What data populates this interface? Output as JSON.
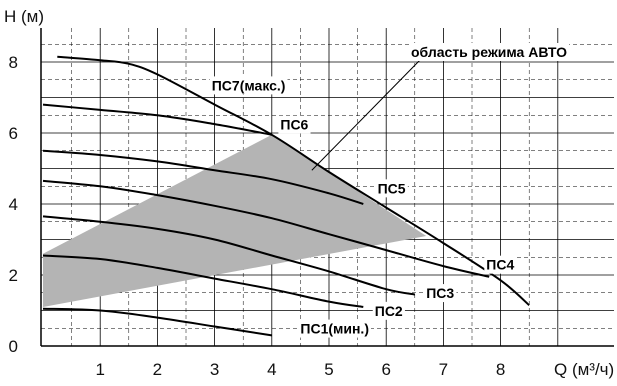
{
  "chart_data": {
    "type": "line",
    "title": "",
    "xlabel": "Q (м³/ч)",
    "ylabel": "H (м)",
    "xlim": [
      0,
      9
    ],
    "ylim": [
      0,
      9
    ],
    "x_ticks": [
      "1",
      "2",
      "3",
      "4",
      "5",
      "6",
      "7",
      "8"
    ],
    "y_ticks": [
      "0",
      "2",
      "4",
      "6",
      "8"
    ],
    "grid": "on (solid major, dashed minor)",
    "colors": {
      "curve": "#000000",
      "grid": "#000000",
      "auto_region": "#b4b4b4"
    },
    "auto_region": {
      "label": "область режима АВТО",
      "polygon": [
        [
          0.0,
          2.6
        ],
        [
          4.0,
          5.95
        ],
        [
          6.7,
          3.1
        ],
        [
          0.0,
          1.1
        ]
      ]
    },
    "series": [
      {
        "name": "ПС1(мин.)",
        "x": [
          0,
          1,
          2,
          3,
          4
        ],
        "y": [
          1.05,
          1.0,
          0.8,
          0.55,
          0.3
        ]
      },
      {
        "name": "ПС2",
        "x": [
          0,
          1,
          2,
          3,
          4,
          5,
          5.6
        ],
        "y": [
          2.55,
          2.45,
          2.2,
          1.9,
          1.6,
          1.25,
          1.1
        ]
      },
      {
        "name": "ПС3",
        "x": [
          0,
          1,
          2,
          3,
          4,
          5,
          6,
          6.5
        ],
        "y": [
          3.65,
          3.5,
          3.3,
          3.0,
          2.55,
          2.1,
          1.6,
          1.45
        ]
      },
      {
        "name": "ПС4",
        "x": [
          0,
          1,
          2,
          3,
          4,
          5,
          6,
          7,
          7.8
        ],
        "y": [
          4.65,
          4.5,
          4.25,
          3.95,
          3.6,
          3.15,
          2.7,
          2.25,
          1.95
        ]
      },
      {
        "name": "ПС5",
        "x": [
          0,
          1,
          2,
          3,
          4,
          5,
          5.6
        ],
        "y": [
          5.5,
          5.38,
          5.2,
          4.95,
          4.7,
          4.3,
          4.0
        ]
      },
      {
        "name": "ПС6",
        "x": [
          0,
          1,
          2,
          3,
          4
        ],
        "y": [
          6.8,
          6.65,
          6.5,
          6.25,
          5.95
        ]
      },
      {
        "name": "ПС7(макс.)",
        "x": [
          0.25,
          1,
          1.5,
          2,
          3,
          4,
          5,
          6,
          7,
          8,
          8.5
        ],
        "y": [
          8.15,
          8.05,
          7.95,
          7.65,
          6.8,
          5.95,
          4.9,
          3.9,
          2.9,
          1.85,
          1.15
        ]
      }
    ],
    "labels": [
      {
        "text": "ПС1(мин.)",
        "series": "ПС1(мин.)",
        "at": [
          4.5,
          0.35
        ]
      },
      {
        "text": "ПС2",
        "series": "ПС2",
        "at": [
          5.8,
          0.85
        ]
      },
      {
        "text": "ПС3",
        "series": "ПС3",
        "at": [
          6.7,
          1.35
        ]
      },
      {
        "text": "ПС4",
        "series": "ПС4",
        "at": [
          7.75,
          2.15
        ]
      },
      {
        "text": "ПС5",
        "series": "ПС5",
        "at": [
          5.85,
          4.3
        ]
      },
      {
        "text": "ПС6",
        "series": "ПС6",
        "at": [
          4.15,
          6.1
        ]
      },
      {
        "text": "ПС7(макс.)",
        "series": "ПС7(макс.)",
        "at": [
          2.95,
          7.2
        ]
      }
    ]
  }
}
